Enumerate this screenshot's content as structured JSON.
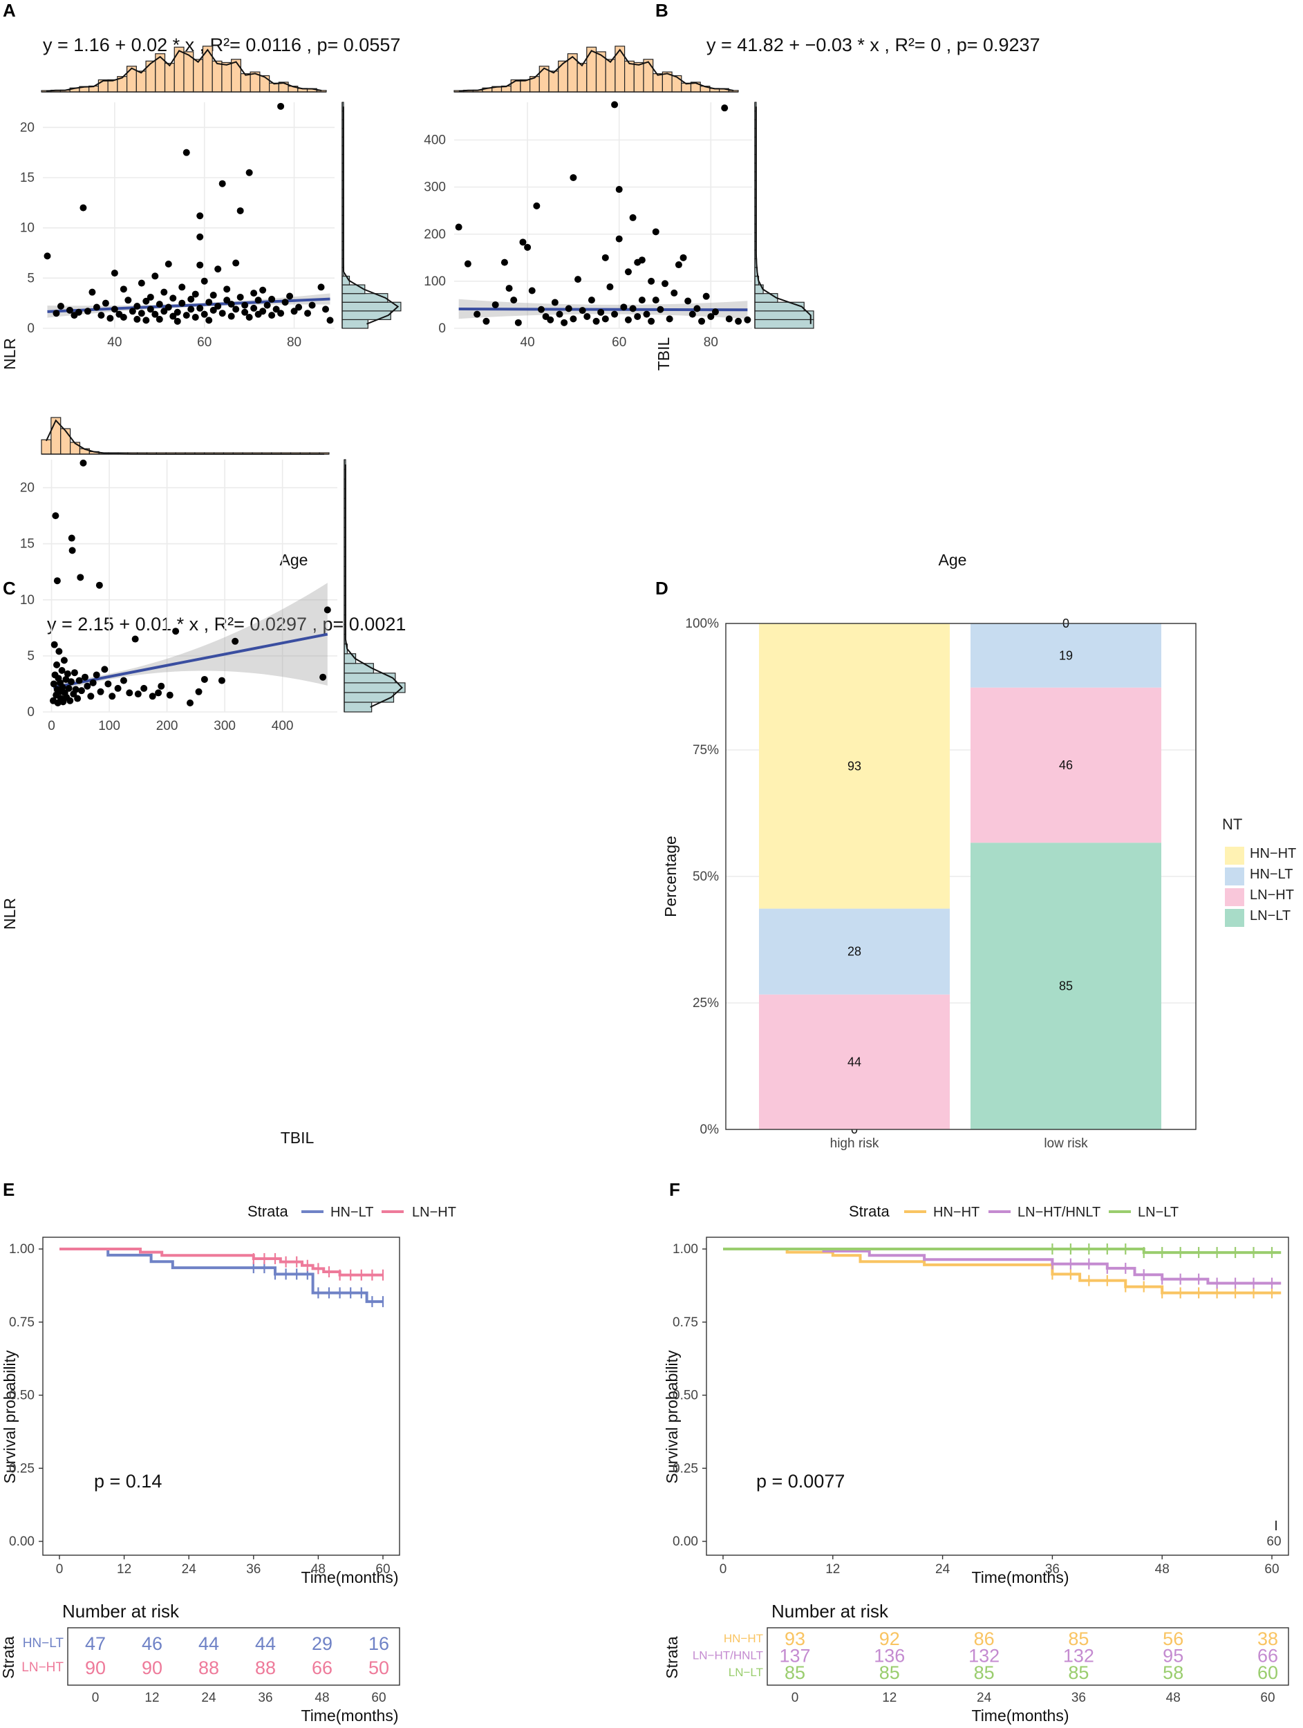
{
  "colors": {
    "hist_fill": "#fdd0a2",
    "margin_fill": "#b9d6d6",
    "reg_line": "#3a4ea0",
    "HN-HT": "#fff2b3",
    "HN-LT": "#c7dcf0",
    "LN-HT": "#f9c7da",
    "LN-LT": "#a8dcc8",
    "km_HN-LT": "#6f82c6",
    "km_LN-HT": "#ee7a9a",
    "km_HN-HT": "#f9c462",
    "km_LN-HT/HNLT": "#c48bd0",
    "km_LN-LT": "#9acd6e"
  },
  "chart_data": [
    {
      "panel": "A",
      "type": "scatter",
      "equation": "y =  1.16  +  0.02  * x , R²=  0.0116 , p=  0.0557",
      "xlabel": "Age",
      "ylabel": "NLR",
      "xlim": [
        24,
        89
      ],
      "ylim": [
        0,
        22.5
      ],
      "xticks": [
        40,
        60,
        80
      ],
      "yticks": [
        0,
        5,
        10,
        15,
        20
      ],
      "regression": {
        "intercept": 1.16,
        "slope": 0.02
      },
      "points": [
        [
          25,
          7.2
        ],
        [
          27,
          1.5
        ],
        [
          28,
          2.2
        ],
        [
          30,
          1.8
        ],
        [
          31,
          1.3
        ],
        [
          32,
          1.6
        ],
        [
          33,
          12.0
        ],
        [
          34,
          1.7
        ],
        [
          35,
          3.6
        ],
        [
          36,
          2.1
        ],
        [
          37,
          1.3
        ],
        [
          38,
          2.5
        ],
        [
          39,
          1.0
        ],
        [
          40,
          5.5
        ],
        [
          40,
          1.9
        ],
        [
          41,
          1.4
        ],
        [
          42,
          3.9
        ],
        [
          42,
          1.1
        ],
        [
          43,
          2.8
        ],
        [
          44,
          1.7
        ],
        [
          45,
          0.9
        ],
        [
          45,
          2.2
        ],
        [
          46,
          4.5
        ],
        [
          46,
          1.5
        ],
        [
          47,
          2.7
        ],
        [
          47,
          0.8
        ],
        [
          48,
          1.9
        ],
        [
          48,
          3.1
        ],
        [
          49,
          5.2
        ],
        [
          49,
          1.4
        ],
        [
          50,
          2.4
        ],
        [
          50,
          0.9
        ],
        [
          51,
          3.6
        ],
        [
          51,
          1.7
        ],
        [
          52,
          6.4
        ],
        [
          52,
          2.1
        ],
        [
          53,
          1.2
        ],
        [
          53,
          3.0
        ],
        [
          54,
          1.6
        ],
        [
          54,
          0.7
        ],
        [
          55,
          2.5
        ],
        [
          55,
          4.1
        ],
        [
          56,
          17.5
        ],
        [
          56,
          1.3
        ],
        [
          57,
          2.9
        ],
        [
          57,
          1.9
        ],
        [
          58,
          3.4
        ],
        [
          58,
          1.1
        ],
        [
          59,
          11.2
        ],
        [
          59,
          9.1
        ],
        [
          59,
          6.3
        ],
        [
          59,
          2.0
        ],
        [
          60,
          1.4
        ],
        [
          60,
          4.7
        ],
        [
          61,
          2.6
        ],
        [
          61,
          0.8
        ],
        [
          62,
          3.3
        ],
        [
          62,
          1.8
        ],
        [
          63,
          2.2
        ],
        [
          63,
          5.9
        ],
        [
          64,
          14.4
        ],
        [
          64,
          1.5
        ],
        [
          65,
          2.8
        ],
        [
          65,
          3.9
        ],
        [
          66,
          1.2
        ],
        [
          66,
          2.4
        ],
        [
          67,
          6.5
        ],
        [
          67,
          1.9
        ],
        [
          68,
          11.7
        ],
        [
          68,
          3.1
        ],
        [
          69,
          1.6
        ],
        [
          69,
          2.3
        ],
        [
          70,
          15.5
        ],
        [
          70,
          1.1
        ],
        [
          71,
          3.5
        ],
        [
          71,
          2.0
        ],
        [
          72,
          1.4
        ],
        [
          72,
          2.8
        ],
        [
          73,
          3.8
        ],
        [
          73,
          1.7
        ],
        [
          74,
          2.3
        ],
        [
          75,
          1.3
        ],
        [
          75,
          2.9
        ],
        [
          76,
          1.9
        ],
        [
          77,
          22.1
        ],
        [
          77,
          1.5
        ],
        [
          78,
          2.6
        ],
        [
          79,
          3.2
        ],
        [
          80,
          1.7
        ],
        [
          81,
          2.1
        ],
        [
          83,
          1.5
        ],
        [
          84,
          2.3
        ],
        [
          86,
          4.1
        ],
        [
          87,
          1.9
        ],
        [
          88,
          0.8
        ]
      ]
    },
    {
      "panel": "B",
      "type": "scatter",
      "equation": "y =  41.82  +  −0.03  * x , R²=  0 , p=  0.9237",
      "xlabel": "Age",
      "ylabel": "TBIL",
      "xlim": [
        24,
        89
      ],
      "ylim": [
        0,
        480
      ],
      "xticks": [
        40,
        60,
        80
      ],
      "yticks": [
        0,
        100,
        200,
        300,
        400
      ],
      "regression": {
        "intercept": 41.82,
        "slope": -0.03
      },
      "points": [
        [
          25,
          215
        ],
        [
          27,
          137
        ],
        [
          29,
          30
        ],
        [
          31,
          15
        ],
        [
          33,
          50
        ],
        [
          35,
          140
        ],
        [
          36,
          85
        ],
        [
          37,
          60
        ],
        [
          38,
          12
        ],
        [
          39,
          183
        ],
        [
          40,
          172
        ],
        [
          41,
          80
        ],
        [
          42,
          260
        ],
        [
          43,
          40
        ],
        [
          44,
          25
        ],
        [
          45,
          18
        ],
        [
          46,
          55
        ],
        [
          47,
          30
        ],
        [
          48,
          12
        ],
        [
          49,
          42
        ],
        [
          50,
          320
        ],
        [
          50,
          20
        ],
        [
          51,
          104
        ],
        [
          52,
          38
        ],
        [
          53,
          25
        ],
        [
          54,
          60
        ],
        [
          55,
          15
        ],
        [
          56,
          34
        ],
        [
          57,
          150
        ],
        [
          57,
          20
        ],
        [
          58,
          88
        ],
        [
          59,
          475
        ],
        [
          59,
          30
        ],
        [
          60,
          295
        ],
        [
          60,
          190
        ],
        [
          61,
          45
        ],
        [
          62,
          120
        ],
        [
          62,
          18
        ],
        [
          63,
          235
        ],
        [
          63,
          42
        ],
        [
          64,
          140
        ],
        [
          64,
          25
        ],
        [
          65,
          60
        ],
        [
          65,
          145
        ],
        [
          66,
          30
        ],
        [
          67,
          100
        ],
        [
          67,
          15
        ],
        [
          68,
          205
        ],
        [
          68,
          60
        ],
        [
          69,
          40
        ],
        [
          70,
          95
        ],
        [
          71,
          20
        ],
        [
          72,
          75
        ],
        [
          73,
          135
        ],
        [
          74,
          150
        ],
        [
          75,
          58
        ],
        [
          76,
          30
        ],
        [
          77,
          42
        ],
        [
          78,
          15
        ],
        [
          79,
          68
        ],
        [
          80,
          25
        ],
        [
          81,
          35
        ],
        [
          83,
          468
        ],
        [
          84,
          20
        ],
        [
          86,
          15
        ],
        [
          88,
          18
        ]
      ]
    },
    {
      "panel": "C",
      "type": "scatter",
      "equation": "y =  2.15  +  0.01  * x , R²=  0.0297 , p=  0.0021",
      "xlabel": "TBIL",
      "ylabel": "NLR",
      "xlim": [
        -15,
        495
      ],
      "ylim": [
        0,
        22.5
      ],
      "xticks": [
        0,
        100,
        200,
        300,
        400
      ],
      "yticks": [
        0,
        5,
        10,
        15,
        20
      ],
      "regression": {
        "intercept": 2.15,
        "slope": 0.01
      },
      "points": [
        [
          7,
          17.5
        ],
        [
          10,
          11.7
        ],
        [
          35,
          15.5
        ],
        [
          36,
          14.4
        ],
        [
          50,
          12.0
        ],
        [
          55,
          22.2
        ],
        [
          83,
          11.3
        ],
        [
          5,
          6.0
        ],
        [
          3,
          1.0
        ],
        [
          4,
          2.5
        ],
        [
          6,
          3.3
        ],
        [
          8,
          1.5
        ],
        [
          9,
          4.2
        ],
        [
          10,
          2.0
        ],
        [
          11,
          0.8
        ],
        [
          12,
          3.0
        ],
        [
          13,
          5.4
        ],
        [
          14,
          1.8
        ],
        [
          15,
          2.6
        ],
        [
          16,
          1.2
        ],
        [
          18,
          3.7
        ],
        [
          19,
          2.2
        ],
        [
          20,
          0.9
        ],
        [
          22,
          4.6
        ],
        [
          23,
          1.7
        ],
        [
          25,
          2.9
        ],
        [
          26,
          1.3
        ],
        [
          28,
          3.4
        ],
        [
          30,
          2.1
        ],
        [
          32,
          1.0
        ],
        [
          34,
          2.7
        ],
        [
          38,
          1.6
        ],
        [
          40,
          3.5
        ],
        [
          42,
          2.0
        ],
        [
          45,
          1.2
        ],
        [
          48,
          2.8
        ],
        [
          52,
          1.9
        ],
        [
          58,
          3.1
        ],
        [
          62,
          2.3
        ],
        [
          68,
          1.4
        ],
        [
          72,
          2.6
        ],
        [
          78,
          3.3
        ],
        [
          85,
          1.8
        ],
        [
          92,
          3.8
        ],
        [
          98,
          2.5
        ],
        [
          105,
          1.4
        ],
        [
          115,
          2.1
        ],
        [
          125,
          2.8
        ],
        [
          135,
          1.7
        ],
        [
          145,
          6.5
        ],
        [
          150,
          1.6
        ],
        [
          160,
          2.1
        ],
        [
          175,
          1.4
        ],
        [
          185,
          1.7
        ],
        [
          190,
          2.3
        ],
        [
          205,
          1.5
        ],
        [
          215,
          7.2
        ],
        [
          240,
          0.8
        ],
        [
          255,
          1.8
        ],
        [
          265,
          2.9
        ],
        [
          295,
          2.8
        ],
        [
          318,
          6.3
        ],
        [
          470,
          3.1
        ],
        [
          478,
          9.1
        ]
      ]
    },
    {
      "panel": "D",
      "type": "bar",
      "ylabel": "Percentage",
      "categories": [
        "high risk",
        "low risk"
      ],
      "yticks": [
        "0%",
        "25%",
        "50%",
        "75%",
        "100%"
      ],
      "legend_title": "NT",
      "legend": [
        "HN−HT",
        "HN−LT",
        "LN−HT",
        "LN−LT"
      ],
      "series": [
        {
          "name": "LN−LT",
          "values": [
            0,
            85
          ]
        },
        {
          "name": "LN−HT",
          "values": [
            44,
            46
          ]
        },
        {
          "name": "HN−LT",
          "values": [
            28,
            19
          ]
        },
        {
          "name": "HN−HT",
          "values": [
            93,
            0
          ]
        }
      ]
    },
    {
      "panel": "E",
      "type": "line",
      "legend_title": "Strata",
      "xlabel": "Time(months)",
      "ylabel": "Survival probability",
      "xticks": [
        0,
        12,
        24,
        36,
        48,
        60
      ],
      "yticks": [
        "0.00",
        "0.25",
        "0.50",
        "0.75",
        "1.00"
      ],
      "pvalue": "p = 0.14",
      "series": [
        {
          "name": "HN−LT",
          "steps": [
            [
              0,
              1.0
            ],
            [
              9,
              0.979
            ],
            [
              17,
              0.957
            ],
            [
              21,
              0.936
            ],
            [
              40,
              0.914
            ],
            [
              47,
              0.85
            ],
            [
              57,
              0.82
            ],
            [
              60,
              0.82
            ]
          ]
        },
        {
          "name": "LN−HT",
          "steps": [
            [
              0,
              1.0
            ],
            [
              15,
              0.989
            ],
            [
              19,
              0.978
            ],
            [
              36,
              0.967
            ],
            [
              41,
              0.956
            ],
            [
              45,
              0.944
            ],
            [
              47,
              0.933
            ],
            [
              49,
              0.922
            ],
            [
              52,
              0.911
            ],
            [
              60,
              0.911
            ]
          ]
        }
      ],
      "risk_table": {
        "title": "Number at risk",
        "ylabel": "Strata",
        "rows": [
          {
            "label": "HN−LT",
            "values": [
              47,
              46,
              44,
              44,
              29,
              16
            ]
          },
          {
            "label": "LN−HT",
            "values": [
              90,
              90,
              88,
              88,
              66,
              50
            ]
          }
        ]
      }
    },
    {
      "panel": "F",
      "type": "line",
      "legend_title": "Strata",
      "xlabel": "Time(months)",
      "ylabel": "Survival probability",
      "xticks": [
        0,
        12,
        24,
        36,
        48,
        60
      ],
      "yticks": [
        "0.00",
        "0.25",
        "0.50",
        "0.75",
        "1.00"
      ],
      "pvalue": "p = 0.0077",
      "corner_label": "60",
      "series": [
        {
          "name": "HN−HT",
          "steps": [
            [
              0,
              1.0
            ],
            [
              7,
              0.989
            ],
            [
              12,
              0.978
            ],
            [
              15,
              0.957
            ],
            [
              22,
              0.946
            ],
            [
              36,
              0.914
            ],
            [
              39,
              0.892
            ],
            [
              44,
              0.871
            ],
            [
              48,
              0.85
            ],
            [
              61,
              0.85
            ]
          ]
        },
        {
          "name": "LN−HT/HNLT",
          "steps": [
            [
              0,
              1.0
            ],
            [
              11,
              0.993
            ],
            [
              16,
              0.978
            ],
            [
              22,
              0.964
            ],
            [
              36,
              0.949
            ],
            [
              42,
              0.934
            ],
            [
              45,
              0.912
            ],
            [
              48,
              0.897
            ],
            [
              53,
              0.883
            ],
            [
              61,
              0.883
            ]
          ]
        },
        {
          "name": "LN−LT",
          "steps": [
            [
              0,
              1.0
            ],
            [
              46,
              0.988
            ],
            [
              61,
              0.988
            ]
          ]
        }
      ],
      "risk_table": {
        "title": "Number at risk",
        "ylabel": "Strata",
        "rows": [
          {
            "label": "HN−HT",
            "values": [
              93,
              92,
              86,
              85,
              56,
              38
            ]
          },
          {
            "label": "LN−HT/HNLT",
            "values": [
              137,
              136,
              132,
              132,
              95,
              66
            ]
          },
          {
            "label": "LN−LT",
            "values": [
              85,
              85,
              85,
              85,
              58,
              "60"
            ]
          }
        ]
      }
    }
  ]
}
